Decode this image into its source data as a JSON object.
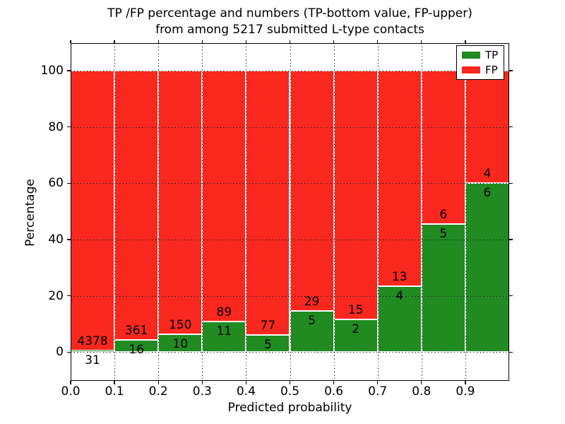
{
  "chart_data": {
    "type": "bar",
    "stacked": true,
    "normalized_to_percent": true,
    "title_lines": [
      "TP /FP percentage and numbers (TP-bottom value, FP-upper)",
      "from among 5217 submitted L-type contacts"
    ],
    "xlabel": "Predicted probability",
    "ylabel": "Percentage",
    "bin_edges": [
      0.0,
      0.1,
      0.2,
      0.3,
      0.4,
      0.5,
      0.6,
      0.7,
      0.8,
      0.9,
      1.0
    ],
    "categories": [
      "0.0-0.1",
      "0.1-0.2",
      "0.2-0.3",
      "0.3-0.4",
      "0.4-0.5",
      "0.5-0.6",
      "0.6-0.7",
      "0.7-0.8",
      "0.8-0.9",
      "0.9-1.0"
    ],
    "series": [
      {
        "name": "TP",
        "color": "#218b21",
        "counts": [
          31,
          16,
          10,
          11,
          5,
          5,
          2,
          4,
          5,
          6
        ]
      },
      {
        "name": "FP",
        "color": "#f8281e",
        "counts": [
          4378,
          361,
          150,
          89,
          77,
          29,
          15,
          13,
          6,
          4
        ]
      }
    ],
    "tp_percent_of_bin": [
      0.7,
      4.24,
      6.25,
      11.0,
      6.1,
      14.71,
      11.76,
      23.53,
      45.45,
      60.0
    ],
    "total_contacts": 5217,
    "xticks": [
      "0.0",
      "0.1",
      "0.2",
      "0.3",
      "0.4",
      "0.5",
      "0.6",
      "0.7",
      "0.8",
      "0.9"
    ],
    "yticks": [
      0,
      20,
      40,
      60,
      80,
      100
    ],
    "xlim": [
      0.0,
      1.0
    ],
    "ylim": [
      -10.2,
      109.8
    ],
    "grid": "dotted, drawn over bars",
    "bar_edge_color": "#ffffff",
    "text_color": "#000000",
    "background_color": "#ffffff",
    "legend": {
      "position": "upper right",
      "entries": [
        "TP",
        "FP"
      ]
    }
  }
}
